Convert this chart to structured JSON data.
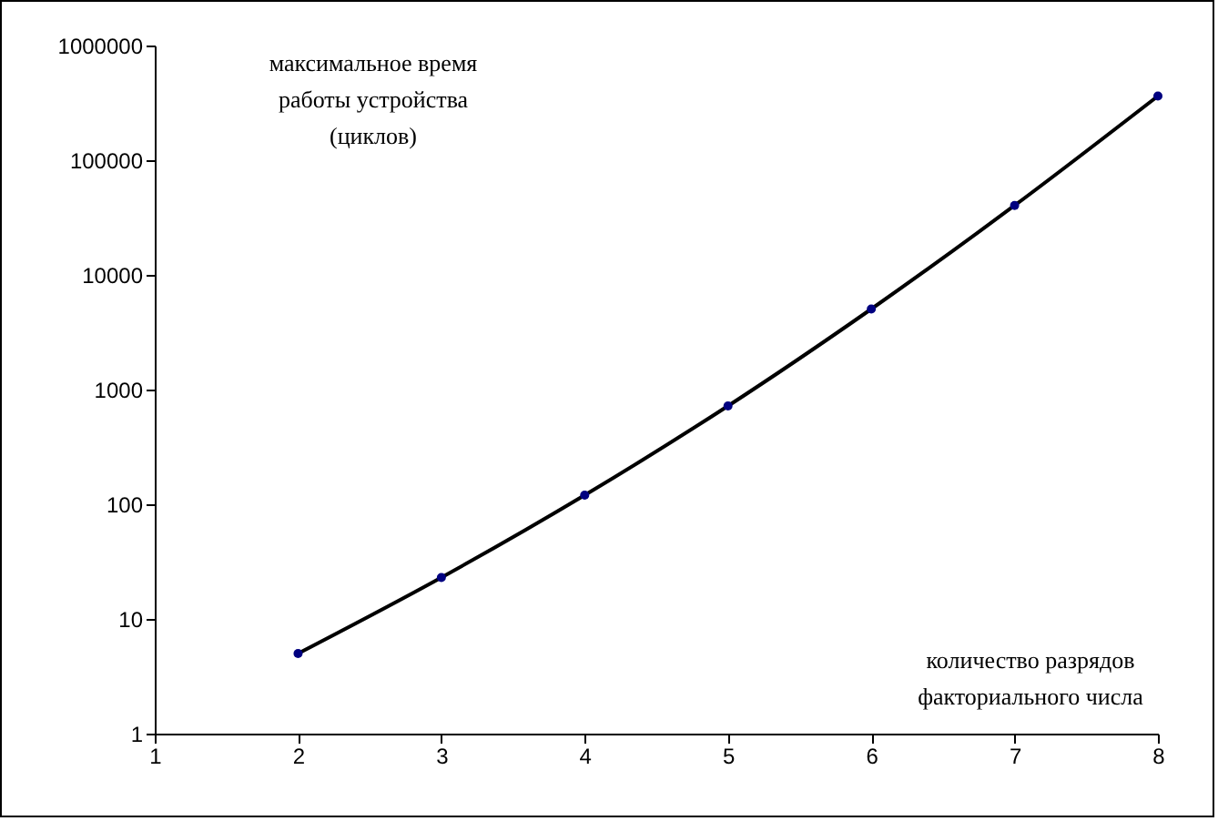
{
  "chart_data": {
    "type": "line",
    "xlabel": "количество разрядов факториального числа",
    "ylabel": "максимальное время работы устройства (циклов)",
    "x": [
      2,
      3,
      4,
      5,
      6,
      7,
      8
    ],
    "series": [
      {
        "color": "#000000",
        "values": [
          5,
          23,
          120,
          720,
          5040,
          40320,
          362880
        ]
      }
    ],
    "log": "y",
    "xlim": [
      1,
      8
    ],
    "xticks": [
      1,
      2,
      3,
      4,
      5,
      6,
      7,
      8
    ],
    "ylim": [
      1,
      1000000
    ],
    "yticks": [
      1,
      10,
      100,
      1000,
      10000,
      100000,
      1000000
    ],
    "marker": "circle",
    "line_style": "solid",
    "grid": false
  }
}
